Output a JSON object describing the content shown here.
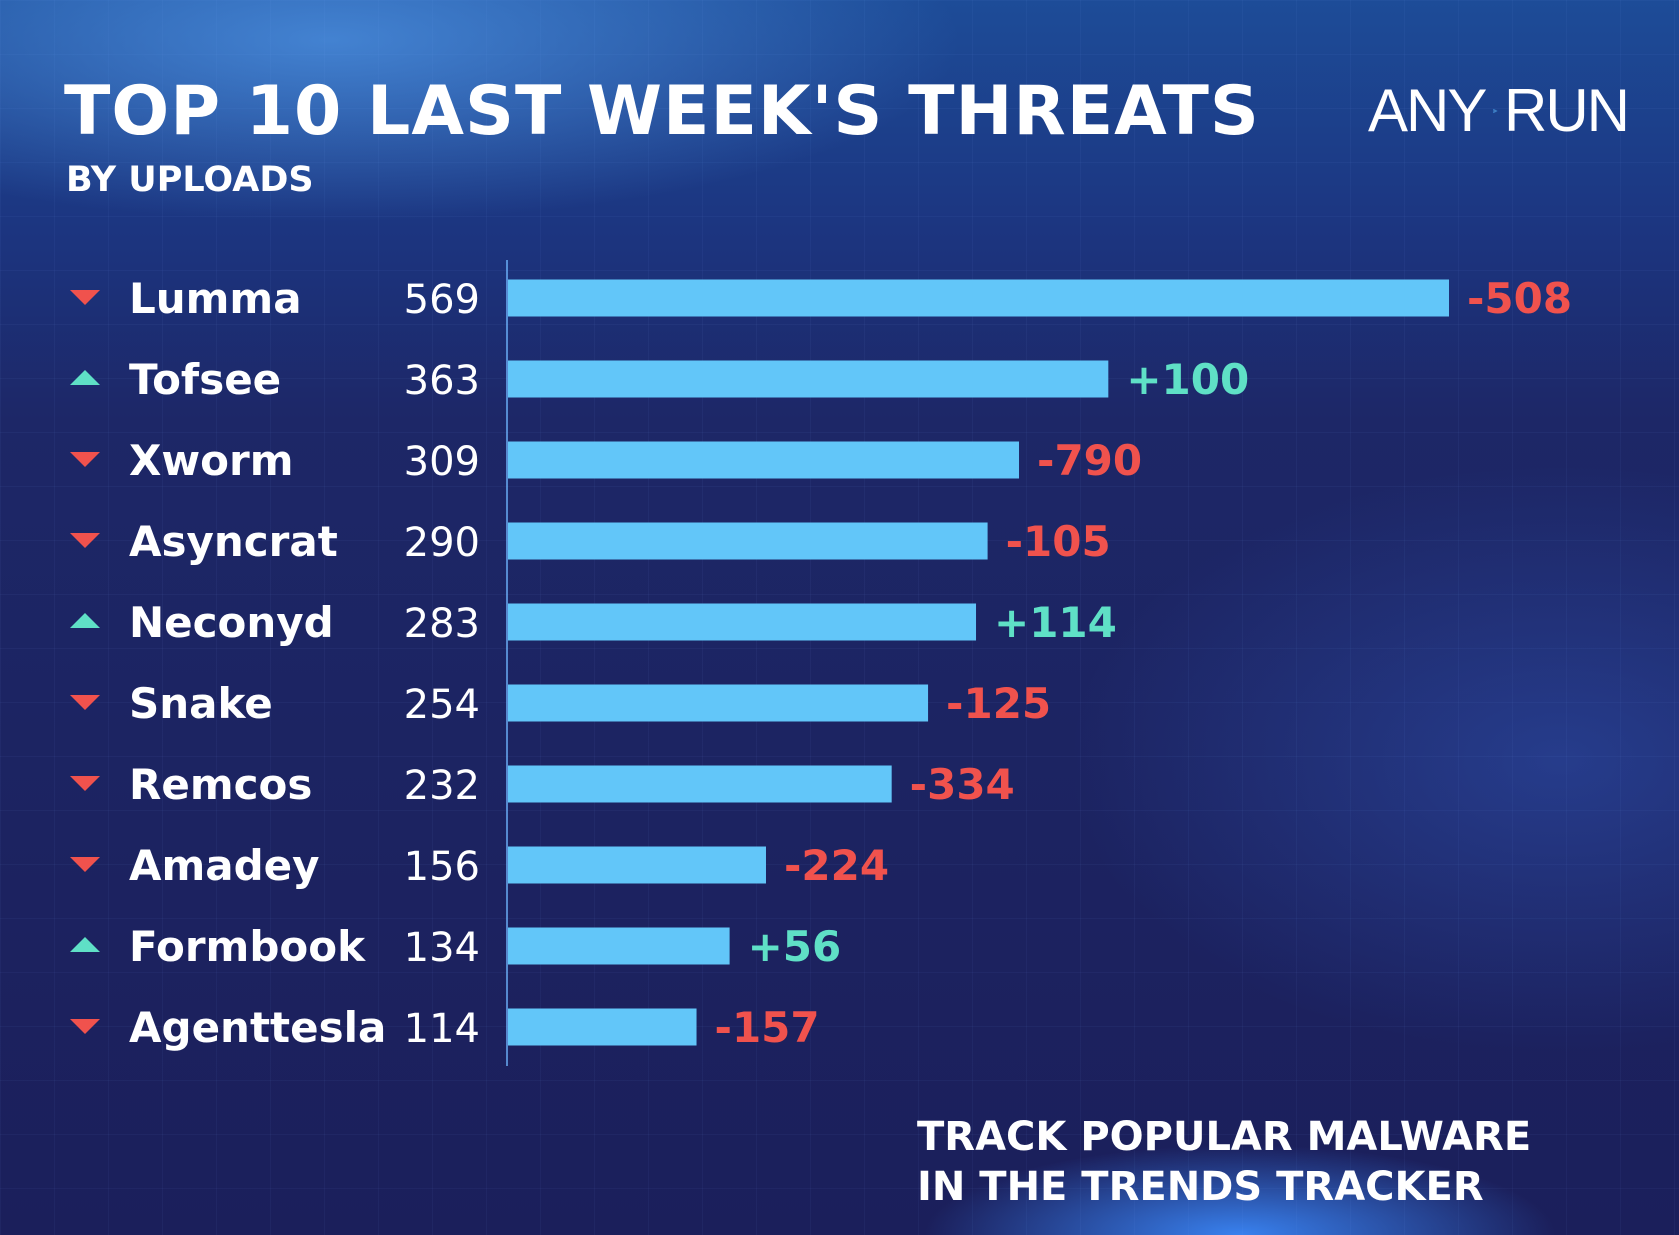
{
  "header": {
    "title": "TOP 10 LAST WEEK'S THREATS",
    "subtitle": "BY UPLOADS"
  },
  "logo": {
    "left_text": "ANY",
    "right_text": "RUN",
    "icon": "play-triangle-icon"
  },
  "footer": {
    "line1": "TRACK POPULAR MALWARE",
    "line2": "IN THE TRENDS TRACKER"
  },
  "colors": {
    "bar": "#62c6f9",
    "up": "#5fe0c6",
    "down": "#f0524d",
    "text": "#ffffff"
  },
  "chart_data": {
    "type": "bar",
    "orientation": "horizontal",
    "categories": [
      "Lumma",
      "Tofsee",
      "Xworm",
      "Asyncrat",
      "Neconyd",
      "Snake",
      "Remcos",
      "Amadey",
      "Formbook",
      "Agenttesla"
    ],
    "values": [
      569,
      363,
      309,
      290,
      283,
      254,
      232,
      156,
      134,
      114
    ],
    "changes": [
      "-508",
      "+100",
      "-790",
      "-105",
      "+114",
      "-125",
      "-334",
      "-224",
      "+56",
      "-157"
    ],
    "trend": [
      "down",
      "up",
      "down",
      "down",
      "up",
      "down",
      "down",
      "down",
      "up",
      "down"
    ],
    "xlim": [
      0,
      569
    ],
    "grid": false,
    "legend": "none"
  }
}
